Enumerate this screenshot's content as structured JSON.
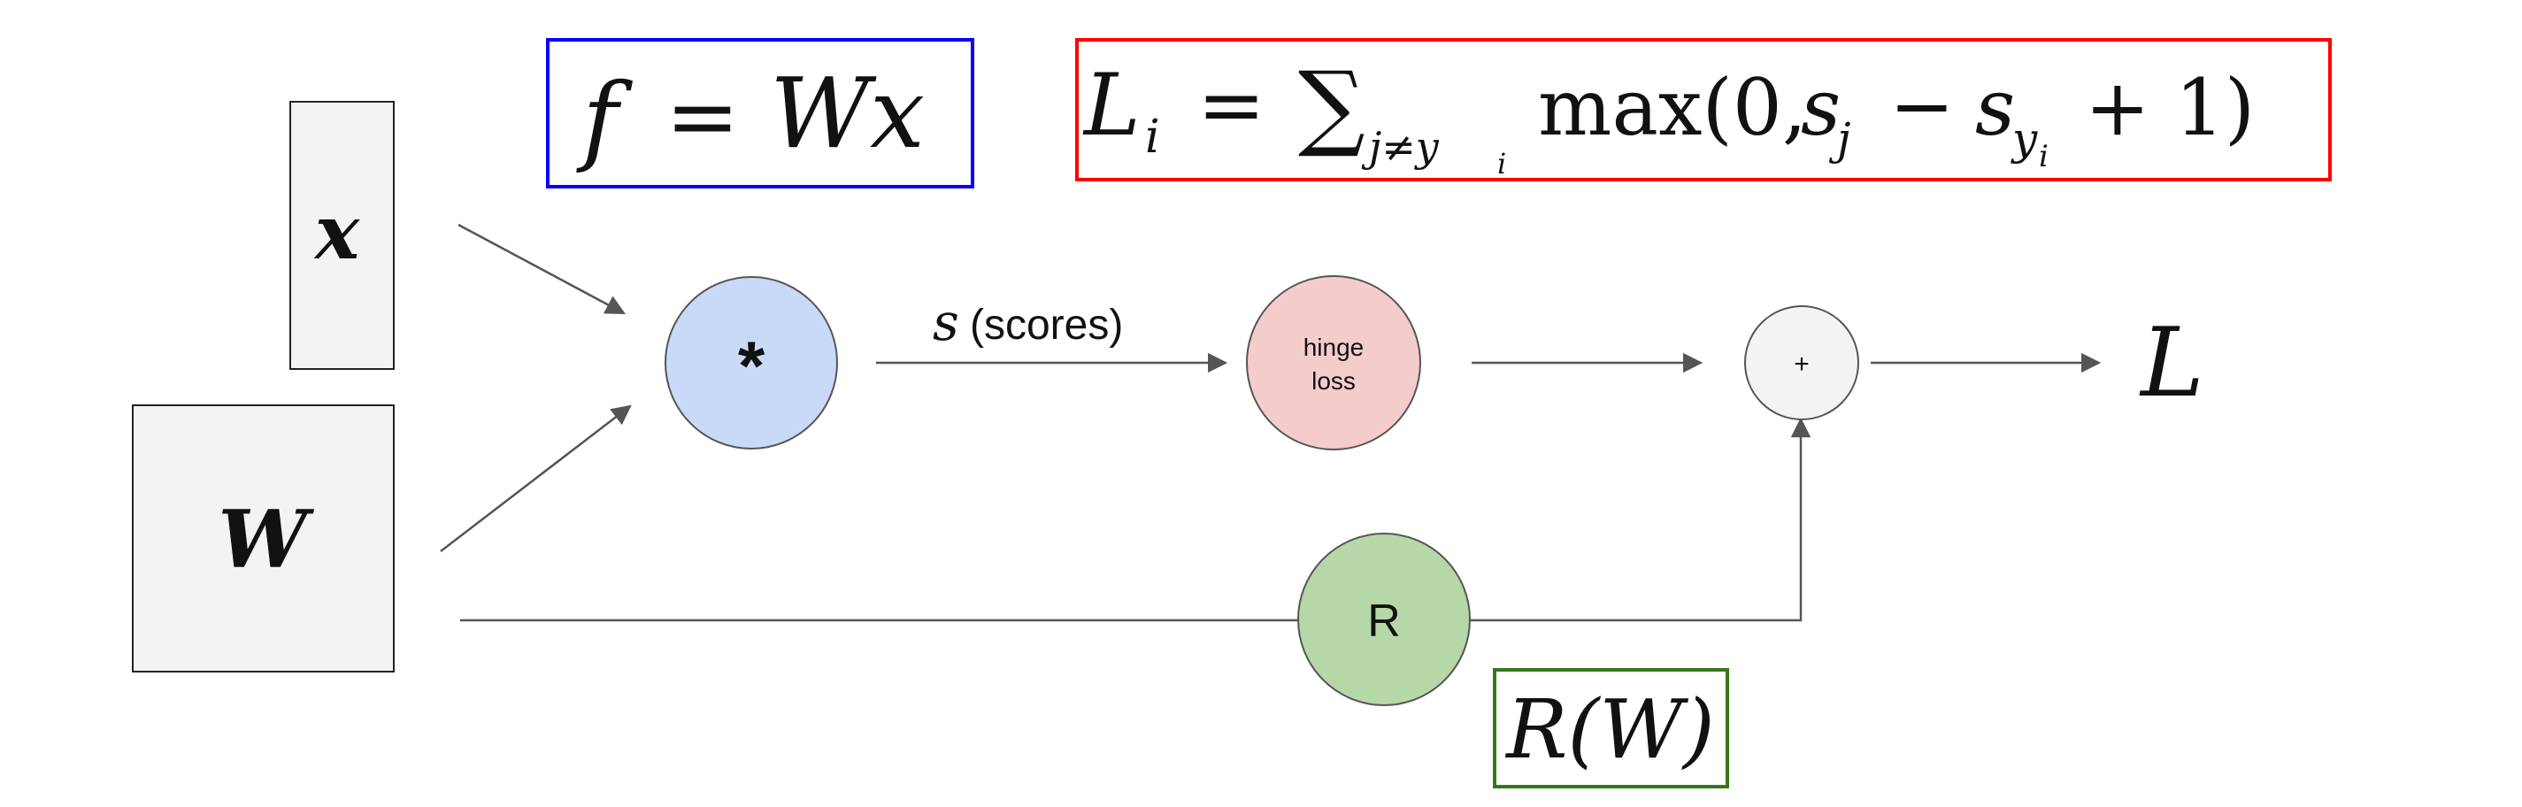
{
  "colors": {
    "line": "#555555",
    "node_stroke": "#555555",
    "input_fill": "#f3f3f3",
    "multiply_fill": "#c9daf8",
    "hinge_fill": "#f4cccc",
    "reg_fill": "#b6d7a8",
    "plus_fill": "#f3f3f3",
    "box_blue": "#0000ff",
    "box_red": "#ff0000",
    "box_green": "#38761d"
  },
  "inputs": {
    "x_label": "x",
    "w_label": "W"
  },
  "nodes": {
    "multiply_label": "*",
    "hinge_line1": "hinge",
    "hinge_line2": "loss",
    "plus_label": "+",
    "reg_label": "R"
  },
  "edges": {
    "scores_var": "s",
    "scores_text": "(scores)"
  },
  "output": {
    "loss_label": "L"
  },
  "equations": {
    "score_fn": {
      "lhs": "f",
      "eq": "=",
      "rhs": "Wx"
    },
    "hinge_fn": {
      "lhs_L": "L",
      "lhs_sub": "i",
      "eq": "=",
      "sum": "∑",
      "sum_sub": "j≠y",
      "sum_subsub": "i",
      "max": "max(0,",
      "s_j": "s",
      "s_j_sub": "j",
      "minus": "−",
      "s_y": "s",
      "s_y_sub": "y",
      "s_y_subsub": "i",
      "tail": "+ 1)"
    },
    "reg_fn": "R(W)"
  }
}
